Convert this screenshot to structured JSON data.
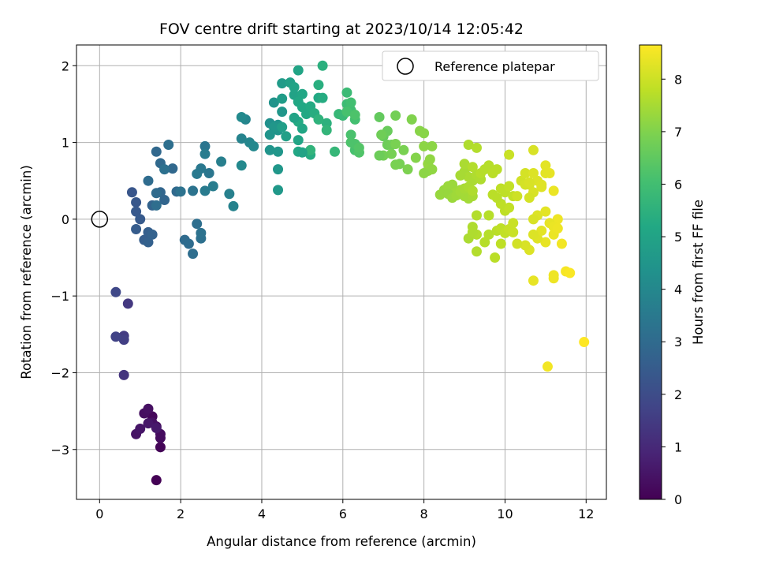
{
  "chart_data": {
    "type": "scatter",
    "title": "FOV centre drift starting at 2023/10/14 12:05:42",
    "xlabel": "Angular distance from reference (arcmin)",
    "ylabel": "Rotation from reference (arcmin)",
    "xlim": [
      -0.57,
      12.5
    ],
    "ylim": [
      -3.65,
      2.27
    ],
    "xticks": [
      0,
      2,
      4,
      6,
      8,
      10,
      12
    ],
    "yticks": [
      -3,
      -2,
      -1,
      0,
      1,
      2
    ],
    "xtick_labels": [
      "0",
      "2",
      "4",
      "6",
      "8",
      "10",
      "12"
    ],
    "ytick_labels": [
      "−3",
      "−2",
      "−1",
      "0",
      "1",
      "2"
    ],
    "grid": true,
    "legend": {
      "placement": "top-right",
      "label": "Reference platepar"
    },
    "reference_point": {
      "x": 0,
      "y": 0
    },
    "colorbar": {
      "label": "Hours from first FF file",
      "colormap": "viridis",
      "range": [
        0,
        8.65
      ],
      "ticks": [
        0,
        1,
        2,
        3,
        4,
        5,
        6,
        7,
        8
      ],
      "tick_labels": [
        "0",
        "1",
        "2",
        "3",
        "4",
        "5",
        "6",
        "7",
        "8"
      ]
    },
    "series": [
      {
        "x": [
          1.4,
          1.5,
          1.3,
          1.4,
          1.5,
          1.5,
          1.1,
          1.2,
          1.3,
          0.9,
          1.0,
          1.2,
          1.4,
          0.6,
          0.6,
          0.6,
          0.4,
          0.7,
          0.4,
          0.8,
          0.9,
          0.9,
          1.0,
          0.9,
          1.1,
          1.2,
          1.2,
          1.3,
          1.3,
          1.6,
          1.5,
          1.8,
          1.9,
          2.1,
          2.2,
          2.3,
          2.4,
          2.5,
          2.5,
          1.4,
          1.5,
          1.4,
          1.2,
          1.4,
          1.7,
          1.6,
          2.0,
          2.3,
          2.6,
          2.7,
          2.5,
          2.4,
          2.6,
          2.6,
          2.8,
          3.0,
          3.2,
          3.3,
          3.5,
          3.6,
          3.7,
          3.8,
          3.5,
          3.5,
          4.2,
          4.3,
          4.4,
          4.4,
          4.3,
          4.5,
          4.2,
          4.4,
          4.4,
          4.4,
          4.3,
          4.2,
          4.5,
          4.5,
          4.5,
          4.6,
          4.7,
          4.8,
          4.8,
          4.9,
          5.0,
          4.9,
          5.0,
          4.9,
          4.8,
          4.9,
          5.0,
          4.9,
          5.1,
          5.2,
          5.2,
          5.3,
          5.4,
          5.5,
          5.6,
          5.4,
          5.2,
          5.6,
          5.8,
          5.9,
          6.0,
          6.1,
          6.1,
          6.2,
          6.2,
          6.3,
          6.3,
          6.2,
          6.3,
          6.4,
          6.2,
          6.1,
          6.3,
          6.4,
          6.4,
          5.4,
          5.5,
          5.0,
          6.9,
          7.0,
          7.1,
          7.1,
          7.2,
          7.3,
          7.4,
          7.5,
          7.6,
          7.7,
          7.8,
          7.9,
          8.0,
          8.1,
          8.1,
          8.2,
          8.2,
          8.0,
          7.3,
          7.2,
          7.0,
          6.9,
          6.95,
          7.3,
          8.15,
          8.0,
          8.4,
          8.5,
          8.6,
          8.7,
          8.8,
          8.9,
          9.0,
          9.1,
          9.2,
          9.0,
          9.1,
          9.2,
          9.3,
          9.4,
          8.6,
          8.7,
          8.8,
          8.9,
          9.0,
          9.1,
          9.2,
          8.9,
          9.0,
          9.1,
          9.2,
          9.3,
          9.4,
          9.5,
          9.6,
          9.7,
          9.8,
          9.9,
          10.0,
          10.1,
          10.2,
          10.0,
          10.1,
          9.9,
          9.8,
          9.7,
          9.6,
          9.8,
          9.9,
          10.0,
          10.1,
          10.2,
          9.2,
          9.3,
          9.1,
          9.2,
          9.3,
          9.5,
          9.9,
          9.75,
          10.2,
          9.6,
          9.3,
          10.1,
          10.3,
          10.4,
          10.5,
          10.6,
          10.7,
          10.8,
          10.9,
          11.0,
          11.1,
          11.2,
          11.3,
          10.7,
          10.8,
          10.6,
          10.7,
          10.5,
          10.9,
          11.0,
          11.1,
          11.2,
          11.0,
          10.8,
          10.6,
          10.5,
          10.3,
          11.2,
          11.5,
          11.6,
          11.2,
          10.7,
          11.05,
          11.95,
          10.9,
          10.7,
          11.2,
          11.4,
          10.7,
          11.3,
          10.6,
          11.0
        ],
        "y": [
          -3.4,
          -2.97,
          -2.57,
          -2.7,
          -2.85,
          -2.8,
          -2.53,
          -2.47,
          -2.65,
          -2.8,
          -2.73,
          -2.66,
          -2.72,
          -2.03,
          -1.52,
          -1.57,
          -1.53,
          -1.1,
          -0.95,
          0.35,
          0.22,
          0.1,
          0.0,
          -0.13,
          -0.27,
          -0.17,
          -0.3,
          -0.2,
          0.18,
          0.25,
          0.35,
          0.66,
          0.36,
          -0.27,
          -0.32,
          -0.45,
          -0.06,
          -0.25,
          -0.18,
          0.88,
          0.73,
          0.34,
          0.5,
          0.18,
          0.97,
          0.65,
          0.36,
          0.37,
          0.95,
          0.6,
          0.66,
          0.59,
          0.37,
          0.85,
          0.43,
          0.75,
          0.33,
          0.17,
          1.05,
          1.3,
          1.0,
          0.95,
          0.7,
          1.33,
          1.25,
          1.21,
          1.23,
          1.16,
          1.52,
          1.4,
          0.9,
          0.88,
          0.65,
          0.38,
          1.2,
          1.1,
          1.77,
          1.57,
          1.2,
          1.08,
          1.78,
          1.62,
          1.72,
          1.94,
          1.63,
          1.53,
          1.46,
          1.27,
          1.32,
          1.03,
          1.18,
          0.88,
          1.37,
          1.47,
          0.84,
          1.38,
          1.75,
          2.0,
          1.25,
          1.3,
          0.9,
          1.16,
          0.88,
          1.37,
          1.35,
          1.65,
          1.5,
          1.42,
          1.52,
          1.3,
          0.9,
          1.1,
          0.98,
          0.87,
          1.0,
          1.4,
          1.36,
          0.87,
          0.93,
          1.58,
          1.58,
          0.87,
          1.33,
          1.08,
          1.15,
          0.97,
          0.97,
          1.35,
          0.72,
          0.9,
          0.65,
          1.3,
          0.8,
          1.15,
          0.95,
          0.63,
          0.72,
          0.65,
          0.95,
          1.12,
          0.71,
          0.85,
          0.83,
          0.83,
          1.1,
          0.98,
          0.78,
          0.6,
          0.32,
          0.38,
          0.43,
          0.45,
          0.35,
          0.38,
          0.3,
          0.27,
          0.3,
          0.62,
          0.55,
          0.5,
          0.58,
          0.52,
          0.33,
          0.28,
          0.31,
          0.36,
          0.4,
          0.42,
          0.37,
          0.57,
          0.72,
          0.97,
          0.68,
          0.93,
          0.6,
          0.65,
          0.7,
          0.6,
          0.65,
          0.4,
          0.35,
          0.43,
          0.3,
          0.11,
          0.15,
          0.2,
          0.28,
          0.32,
          0.05,
          -0.15,
          -0.12,
          -0.18,
          -0.13,
          -0.05,
          -0.1,
          -0.2,
          -0.25,
          -0.17,
          -0.42,
          -0.3,
          -0.32,
          -0.5,
          -0.17,
          -0.2,
          0.05,
          0.84,
          0.3,
          0.5,
          0.6,
          0.45,
          0.35,
          0.5,
          0.45,
          0.7,
          0.6,
          0.37,
          0.0,
          0.9,
          0.05,
          0.28,
          0.0,
          0.45,
          0.42,
          0.1,
          -0.05,
          -0.2,
          -0.3,
          -0.25,
          -0.4,
          -0.34,
          -0.32,
          -0.1,
          -0.68,
          -0.7,
          -0.77,
          -0.8,
          -1.92,
          -1.6,
          -0.15,
          -0.2,
          -0.73,
          -0.32,
          0.6,
          -0.12,
          0.48,
          0.6
        ],
        "hours": [
          0.02,
          0.09,
          0.15,
          0.2,
          0.25,
          0.28,
          0.32,
          0.36,
          0.4,
          0.45,
          0.5,
          0.55,
          0.6,
          1.3,
          1.5,
          1.6,
          1.7,
          1.4,
          1.85,
          2.3,
          2.35,
          2.4,
          2.45,
          2.5,
          2.55,
          2.6,
          2.65,
          2.7,
          2.75,
          2.8,
          2.85,
          2.9,
          2.95,
          3.0,
          3.05,
          3.1,
          3.15,
          3.2,
          3.25,
          2.9,
          2.95,
          3.0,
          3.05,
          3.1,
          3.15,
          3.2,
          3.25,
          3.3,
          3.35,
          3.4,
          3.45,
          3.5,
          3.55,
          3.6,
          3.65,
          3.7,
          3.75,
          3.8,
          3.85,
          3.9,
          3.95,
          4.0,
          4.05,
          4.1,
          4.3,
          4.35,
          4.4,
          4.45,
          4.4,
          4.5,
          4.45,
          4.5,
          4.55,
          4.6,
          4.5,
          4.45,
          4.7,
          4.75,
          4.8,
          4.85,
          4.9,
          4.95,
          5.0,
          5.05,
          5.1,
          5.15,
          5.2,
          5.25,
          5.0,
          5.05,
          5.1,
          5.15,
          5.2,
          5.25,
          5.3,
          5.35,
          5.4,
          5.45,
          5.5,
          5.55,
          5.6,
          5.65,
          5.7,
          5.75,
          5.8,
          5.85,
          5.9,
          5.95,
          6.0,
          6.05,
          6.1,
          6.15,
          6.2,
          6.25,
          6.2,
          6.1,
          6.2,
          6.25,
          6.3,
          5.2,
          5.3,
          5.0,
          6.55,
          6.6,
          6.65,
          6.7,
          6.75,
          6.8,
          6.85,
          6.9,
          6.95,
          7.0,
          7.05,
          7.1,
          7.15,
          7.2,
          7.25,
          7.2,
          7.15,
          7.1,
          6.9,
          6.85,
          6.8,
          6.7,
          6.75,
          6.9,
          7.2,
          7.15,
          7.3,
          7.3,
          7.35,
          7.35,
          7.4,
          7.4,
          7.45,
          7.45,
          7.5,
          7.5,
          7.55,
          7.55,
          7.6,
          7.6,
          7.3,
          7.35,
          7.4,
          7.45,
          7.5,
          7.55,
          7.6,
          7.5,
          7.55,
          7.6,
          7.65,
          7.65,
          7.7,
          7.7,
          7.7,
          7.75,
          7.75,
          7.8,
          7.8,
          7.85,
          7.85,
          7.8,
          7.85,
          7.8,
          7.75,
          7.75,
          7.7,
          7.75,
          7.8,
          7.85,
          7.9,
          7.95,
          7.6,
          7.65,
          7.55,
          7.6,
          7.65,
          7.7,
          7.8,
          7.75,
          7.95,
          7.7,
          7.65,
          7.95,
          8.0,
          8.05,
          8.1,
          8.1,
          8.15,
          8.2,
          8.25,
          8.3,
          8.35,
          8.4,
          8.45,
          8.15,
          8.2,
          8.1,
          8.15,
          8.1,
          8.25,
          8.3,
          8.35,
          8.4,
          8.35,
          8.25,
          8.2,
          8.15,
          8.05,
          8.4,
          8.55,
          8.6,
          8.45,
          8.35,
          8.5,
          8.65,
          8.3,
          8.2,
          8.45,
          8.5,
          8.2,
          8.45,
          8.15,
          8.3
        ]
      }
    ]
  }
}
